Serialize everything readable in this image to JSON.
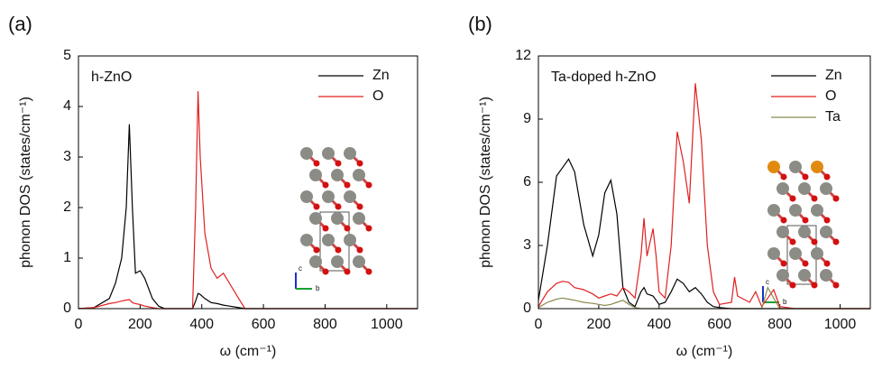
{
  "chart_data": [
    {
      "type": "line",
      "panel_label": "(a)",
      "title": "h-ZnO",
      "x_label": "ω (cm⁻¹)",
      "y_label": "phonon DOS (states/cm⁻¹)",
      "annotations": [
        "c",
        "b"
      ],
      "legend": "top-right",
      "xlim": [
        0,
        1100
      ],
      "xticks": [
        0,
        200,
        400,
        600,
        800,
        1000
      ],
      "ylim": [
        0,
        5
      ],
      "yticks": [
        0,
        1,
        2,
        3,
        4,
        5
      ],
      "x": [
        0,
        50,
        100,
        120,
        140,
        155,
        165,
        175,
        185,
        200,
        215,
        240,
        260,
        280,
        370,
        380,
        388,
        395,
        410,
        430,
        450,
        470,
        490,
        520,
        540,
        600,
        1100
      ],
      "series": [
        {
          "name": "Zn",
          "color": "#000000",
          "values": [
            0,
            0.02,
            0.2,
            0.5,
            1.0,
            2.0,
            3.65,
            2.0,
            0.7,
            0.75,
            0.6,
            0.2,
            0.05,
            0,
            0,
            0.15,
            0.3,
            0.28,
            0.2,
            0.12,
            0.1,
            0.07,
            0.05,
            0.02,
            0,
            0,
            0
          ]
        },
        {
          "name": "O",
          "color": "#e02020",
          "values": [
            0,
            0.02,
            0.1,
            0.12,
            0.15,
            0.17,
            0.18,
            0.12,
            0.1,
            0.08,
            0.05,
            0.02,
            0,
            0,
            0,
            2.0,
            4.3,
            3.0,
            1.5,
            0.8,
            0.6,
            0.7,
            0.5,
            0.2,
            0,
            0,
            0
          ]
        }
      ]
    },
    {
      "type": "line",
      "panel_label": "(b)",
      "title": "Ta-doped h-ZnO",
      "x_label": "ω (cm⁻¹)",
      "y_label": "phonon DOS (states/cm⁻¹)",
      "annotations": [
        "c",
        "b"
      ],
      "legend": "top-right",
      "xlim": [
        0,
        1100
      ],
      "xticks": [
        0,
        200,
        400,
        600,
        800,
        1000
      ],
      "ylim": [
        0,
        12
      ],
      "yticks": [
        0,
        3,
        6,
        9,
        12
      ],
      "x": [
        0,
        30,
        60,
        80,
        100,
        120,
        150,
        180,
        200,
        220,
        240,
        260,
        280,
        300,
        320,
        340,
        350,
        360,
        380,
        390,
        400,
        420,
        440,
        460,
        480,
        500,
        520,
        540,
        560,
        580,
        600,
        640,
        650,
        660,
        700,
        720,
        740,
        760,
        780,
        800,
        850,
        1100
      ],
      "series": [
        {
          "name": "Zn",
          "color": "#000000",
          "values": [
            0.4,
            3,
            6.3,
            6.7,
            7.1,
            6.5,
            4,
            2.5,
            3.5,
            5.5,
            6.1,
            4.5,
            1,
            0.3,
            0.1,
            0.8,
            1.0,
            0.7,
            0.6,
            0.4,
            0.2,
            0.3,
            0.8,
            1.4,
            1.2,
            0.8,
            1.0,
            0.7,
            0.3,
            0.1,
            0.05,
            0,
            0,
            0,
            0,
            0,
            0,
            0,
            0,
            0,
            0,
            0
          ]
        },
        {
          "name": "O",
          "color": "#e02020",
          "values": [
            0.1,
            0.8,
            1.2,
            1.3,
            1.25,
            1.0,
            0.9,
            0.7,
            0.5,
            0.6,
            0.7,
            0.6,
            1.0,
            0.8,
            0.5,
            2.5,
            4.3,
            2.5,
            3.8,
            2.5,
            0.8,
            0.5,
            3.0,
            8.4,
            7.0,
            5.0,
            10.7,
            8.0,
            3,
            0.8,
            0.2,
            0.3,
            1.5,
            0.6,
            0.3,
            0.8,
            0.1,
            0.5,
            0.9,
            0.1,
            0,
            0
          ]
        },
        {
          "name": "Ta",
          "color": "#8a8a50",
          "values": [
            0.05,
            0.3,
            0.45,
            0.5,
            0.45,
            0.4,
            0.3,
            0.25,
            0.2,
            0.15,
            0.2,
            0.3,
            0.4,
            0.2,
            0.05,
            0,
            0,
            0,
            0,
            0,
            0,
            0,
            0,
            0,
            0,
            0,
            0,
            0,
            0,
            0,
            0,
            0,
            0,
            0,
            0,
            0,
            0,
            1.0,
            0.5,
            0,
            0,
            0
          ]
        }
      ]
    }
  ]
}
